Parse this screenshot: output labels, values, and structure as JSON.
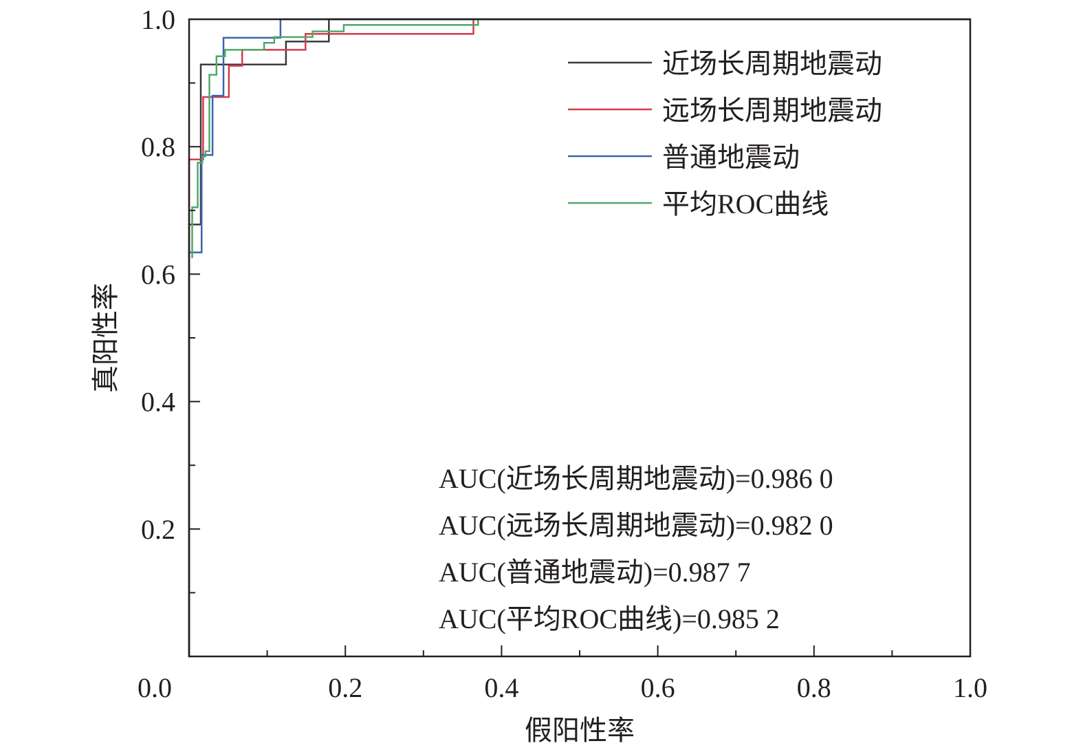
{
  "chart_data": {
    "type": "line",
    "title": "",
    "xlabel": "假阳性率",
    "ylabel": "真阳性率",
    "xlim": [
      0,
      1
    ],
    "ylim": [
      0,
      1
    ],
    "xticks": [
      "0.0",
      "0.2",
      "0.4",
      "0.6",
      "0.8",
      "1.0"
    ],
    "yticks": [
      "0.2",
      "0.4",
      "0.6",
      "0.8",
      "1.0"
    ],
    "xtick_values": [
      0,
      0.2,
      0.4,
      0.6,
      0.8,
      1.0
    ],
    "ytick_values": [
      0.2,
      0.4,
      0.6,
      0.8,
      1.0
    ],
    "minor_ticks": true,
    "grid": false,
    "legend_position": "top-right",
    "series": [
      {
        "name": "近场长周期地震动",
        "color": "#3a3a3a",
        "x": [
          0,
          0,
          0.015,
          0.015,
          0.124,
          0.124,
          0.179,
          0.179,
          1
        ],
        "y": [
          0,
          0.678,
          0.678,
          0.929,
          0.929,
          0.965,
          0.965,
          1,
          1
        ]
      },
      {
        "name": "远场长周期地震动",
        "color": "#d63a4a",
        "x": [
          0,
          0,
          0.018,
          0.018,
          0.051,
          0.051,
          0.068,
          0.068,
          0.149,
          0.149,
          0.364,
          0.364,
          1
        ],
        "y": [
          0,
          0.78,
          0.78,
          0.878,
          0.878,
          0.927,
          0.927,
          0.952,
          0.952,
          0.977,
          0.977,
          1,
          1
        ]
      },
      {
        "name": "普通地震动",
        "color": "#3b64ad",
        "x": [
          0,
          0,
          0.016,
          0.016,
          0.03,
          0.03,
          0.044,
          0.044,
          0.117,
          0.117,
          1
        ],
        "y": [
          0,
          0.634,
          0.634,
          0.787,
          0.787,
          0.88,
          0.88,
          0.971,
          0.971,
          1,
          1
        ]
      },
      {
        "name": "平均ROC曲线",
        "color": "#4fa86a",
        "x": [
          0.004,
          0.004,
          0.011,
          0.011,
          0.017,
          0.017,
          0.021,
          0.021,
          0.026,
          0.026,
          0.035,
          0.035,
          0.046,
          0.046,
          0.096,
          0.096,
          0.109,
          0.109,
          0.158,
          0.158,
          0.198,
          0.198,
          0.37,
          0.37,
          1
        ],
        "y": [
          0.625,
          0.705,
          0.705,
          0.775,
          0.775,
          0.785,
          0.785,
          0.793,
          0.793,
          0.913,
          0.913,
          0.942,
          0.942,
          0.952,
          0.952,
          0.963,
          0.963,
          0.972,
          0.972,
          0.981,
          0.981,
          0.991,
          0.991,
          1,
          1
        ]
      }
    ],
    "annotations": [
      "AUC(近场长周期地震动)=0.986 0",
      "AUC(远场长周期地震动)=0.982 0",
      "AUC(普通地震动)=0.987 7",
      "AUC(平均ROC曲线)=0.985 2"
    ]
  }
}
